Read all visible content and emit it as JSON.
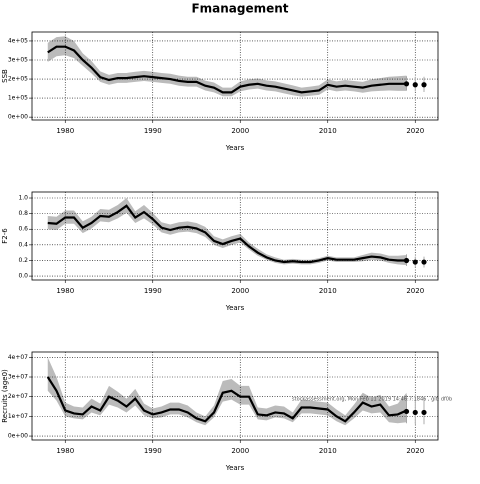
{
  "title": "Fmanagement",
  "chart_data": [
    {
      "type": "line",
      "ylabel": "SSB",
      "xlabel": "Years",
      "xlim": [
        1976.2,
        2022.6
      ],
      "xticks": [
        1980,
        1990,
        2000,
        2010,
        2020
      ],
      "ylim": [
        -15000,
        447000
      ],
      "yticks": [
        {
          "value": 0,
          "label": "0e+00"
        },
        {
          "value": 100000,
          "label": "1e+05"
        },
        {
          "value": 200000,
          "label": "2e+05"
        },
        {
          "value": 300000,
          "label": "3e+05"
        },
        {
          "value": 400000,
          "label": "4e+05"
        }
      ],
      "grid": true,
      "color": "#000000",
      "band_color": "#bbbbbb",
      "x": [
        1978,
        1979,
        1980,
        1981,
        1982,
        1983,
        1984,
        1985,
        1986,
        1987,
        1988,
        1989,
        1990,
        1991,
        1992,
        1993,
        1994,
        1995,
        1996,
        1997,
        1998,
        1999,
        2000,
        2001,
        2002,
        2003,
        2004,
        2005,
        2006,
        2007,
        2008,
        2009,
        2010,
        2011,
        2012,
        2013,
        2014,
        2015,
        2016,
        2017,
        2018,
        2019
      ],
      "values": [
        340000,
        370000,
        370000,
        350000,
        300000,
        260000,
        210000,
        195000,
        205000,
        205000,
        210000,
        215000,
        210000,
        205000,
        200000,
        190000,
        185000,
        185000,
        165000,
        155000,
        130000,
        130000,
        160000,
        170000,
        175000,
        165000,
        160000,
        150000,
        140000,
        130000,
        135000,
        140000,
        170000,
        160000,
        165000,
        160000,
        155000,
        165000,
        170000,
        175000,
        175000,
        175000
      ],
      "lower": [
        290000,
        320000,
        325000,
        310000,
        270000,
        230000,
        185000,
        170000,
        180000,
        180000,
        185000,
        190000,
        185000,
        180000,
        175000,
        165000,
        160000,
        160000,
        140000,
        130000,
        110000,
        110000,
        135000,
        145000,
        150000,
        140000,
        135000,
        125000,
        115000,
        108000,
        112000,
        117000,
        145000,
        135000,
        140000,
        135000,
        128000,
        135000,
        138000,
        140000,
        138000,
        138000
      ],
      "upper": [
        390000,
        420000,
        425000,
        400000,
        335000,
        295000,
        240000,
        222000,
        232000,
        232000,
        238000,
        243000,
        238000,
        232000,
        228000,
        218000,
        212000,
        212000,
        192000,
        182000,
        155000,
        155000,
        188000,
        198000,
        203000,
        193000,
        188000,
        177000,
        167000,
        155000,
        160000,
        167000,
        198000,
        188000,
        195000,
        190000,
        185000,
        198000,
        205000,
        212000,
        215000,
        218000
      ],
      "forecast": {
        "x": [
          2019,
          2020,
          2021
        ],
        "values": [
          175000,
          170000,
          170000
        ],
        "lower": [
          140000,
          135000,
          132000
        ],
        "upper": [
          215000,
          212000,
          212000
        ]
      }
    },
    {
      "type": "line",
      "ylabel": "F2-6",
      "xlabel": "Years",
      "xlim": [
        1976.2,
        2022.6
      ],
      "xticks": [
        1980,
        1990,
        2000,
        2010,
        2020
      ],
      "ylim": [
        -0.05,
        1.077
      ],
      "yticks": [
        {
          "value": 0,
          "label": "0.0"
        },
        0.2,
        0.4,
        0.6,
        0.8,
        {
          "value": 1,
          "label": "1.0"
        }
      ],
      "grid": true,
      "color": "#000000",
      "band_color": "#bbbbbb",
      "x": [
        1978,
        1979,
        1980,
        1981,
        1982,
        1983,
        1984,
        1985,
        1986,
        1987,
        1988,
        1989,
        1990,
        1991,
        1992,
        1993,
        1994,
        1995,
        1996,
        1997,
        1998,
        1999,
        2000,
        2001,
        2002,
        2003,
        2004,
        2005,
        2006,
        2007,
        2008,
        2009,
        2010,
        2011,
        2012,
        2013,
        2014,
        2015,
        2016,
        2017,
        2018,
        2019
      ],
      "values": [
        0.68,
        0.67,
        0.75,
        0.75,
        0.62,
        0.68,
        0.77,
        0.76,
        0.82,
        0.9,
        0.75,
        0.82,
        0.73,
        0.62,
        0.59,
        0.62,
        0.63,
        0.61,
        0.56,
        0.45,
        0.41,
        0.45,
        0.48,
        0.38,
        0.3,
        0.24,
        0.2,
        0.18,
        0.19,
        0.18,
        0.18,
        0.2,
        0.23,
        0.21,
        0.21,
        0.21,
        0.23,
        0.25,
        0.24,
        0.21,
        0.2,
        0.2
      ],
      "lower": [
        0.6,
        0.59,
        0.67,
        0.67,
        0.55,
        0.61,
        0.7,
        0.69,
        0.74,
        0.81,
        0.68,
        0.74,
        0.66,
        0.56,
        0.53,
        0.56,
        0.57,
        0.55,
        0.5,
        0.4,
        0.36,
        0.4,
        0.43,
        0.34,
        0.26,
        0.21,
        0.17,
        0.15,
        0.16,
        0.15,
        0.15,
        0.17,
        0.2,
        0.18,
        0.18,
        0.18,
        0.19,
        0.21,
        0.2,
        0.17,
        0.15,
        0.14
      ],
      "upper": [
        0.77,
        0.76,
        0.84,
        0.84,
        0.7,
        0.76,
        0.86,
        0.85,
        0.91,
        1.0,
        0.83,
        0.91,
        0.81,
        0.69,
        0.66,
        0.69,
        0.7,
        0.68,
        0.63,
        0.51,
        0.47,
        0.51,
        0.54,
        0.43,
        0.35,
        0.28,
        0.24,
        0.21,
        0.22,
        0.21,
        0.21,
        0.23,
        0.26,
        0.24,
        0.24,
        0.24,
        0.27,
        0.3,
        0.29,
        0.26,
        0.26,
        0.27
      ],
      "forecast": {
        "x": [
          2019,
          2020,
          2021
        ],
        "values": [
          0.2,
          0.18,
          0.18
        ],
        "lower": [
          0.13,
          0.11,
          0.11
        ],
        "upper": [
          0.28,
          0.25,
          0.25
        ]
      }
    },
    {
      "type": "line",
      "ylabel": "Recruits (age0)",
      "xlabel": "Years",
      "xlim": [
        1976.2,
        2022.6
      ],
      "xticks": [
        1980,
        1990,
        2000,
        2010,
        2020
      ],
      "ylim": [
        -2000000,
        42700000
      ],
      "yticks": [
        {
          "value": 0,
          "label": "0e+00"
        },
        {
          "value": 10000000,
          "label": "1e+07"
        },
        {
          "value": 20000000,
          "label": "2e+07"
        },
        {
          "value": 30000000,
          "label": "3e+07"
        },
        {
          "value": 40000000,
          "label": "4e+07"
        }
      ],
      "grid": true,
      "color": "#000000",
      "band_color": "#bbbbbb",
      "annotation": "stockassessment.org, Mon Feb 11 2019 14:46:7:1846 , git: df0b",
      "x": [
        1978,
        1979,
        1980,
        1981,
        1982,
        1983,
        1984,
        1985,
        1986,
        1987,
        1988,
        1989,
        1990,
        1991,
        1992,
        1993,
        1994,
        1995,
        1996,
        1997,
        1998,
        1999,
        2000,
        2001,
        2002,
        2003,
        2004,
        2005,
        2006,
        2007,
        2008,
        2009,
        2010,
        2011,
        2012,
        2013,
        2014,
        2015,
        2016,
        2017,
        2018,
        2019
      ],
      "values": [
        30000000,
        23000000,
        13000000,
        11500000,
        11000000,
        15000000,
        13000000,
        20000000,
        18000000,
        15000000,
        19000000,
        13000000,
        11000000,
        12000000,
        13500000,
        13500000,
        12000000,
        9000000,
        7500000,
        12000000,
        22000000,
        23000000,
        20000000,
        20000000,
        11000000,
        10500000,
        12000000,
        11500000,
        9000000,
        14500000,
        14500000,
        14000000,
        13500000,
        10000000,
        7500000,
        12000000,
        17000000,
        15000000,
        16000000,
        10500000,
        11000000,
        13000000
      ],
      "lower": [
        23000000,
        18000000,
        10000000,
        9000000,
        8500000,
        12000000,
        10500000,
        16000000,
        14500000,
        12000000,
        15500000,
        10500000,
        9000000,
        9500000,
        11000000,
        11000000,
        9500000,
        7000000,
        5500000,
        9500000,
        17500000,
        18500000,
        16000000,
        16000000,
        8500000,
        8000000,
        9500000,
        9000000,
        7000000,
        11500000,
        11500000,
        11000000,
        10500000,
        7500000,
        5500000,
        9000000,
        13000000,
        11500000,
        12000000,
        7000000,
        6500000,
        7000000
      ],
      "upper": [
        40000000,
        30000000,
        17000000,
        15000000,
        14500000,
        19000000,
        16500000,
        25500000,
        22500000,
        19000000,
        24000000,
        16500000,
        14000000,
        15000000,
        17000000,
        17000000,
        15500000,
        12000000,
        10000000,
        15500000,
        28000000,
        29000000,
        25500000,
        25500000,
        14500000,
        14000000,
        15500000,
        15000000,
        12000000,
        18500000,
        18000000,
        17500000,
        17000000,
        13500000,
        10500000,
        16000000,
        22000000,
        19500000,
        21000000,
        15000000,
        16500000,
        22000000
      ],
      "forecast": {
        "x": [
          2019,
          2020,
          2021
        ],
        "values": [
          12500000,
          12000000,
          12000000
        ],
        "lower": [
          6500000,
          6000000,
          6000000
        ],
        "upper": [
          21000000,
          20000000,
          20000000
        ]
      }
    }
  ]
}
